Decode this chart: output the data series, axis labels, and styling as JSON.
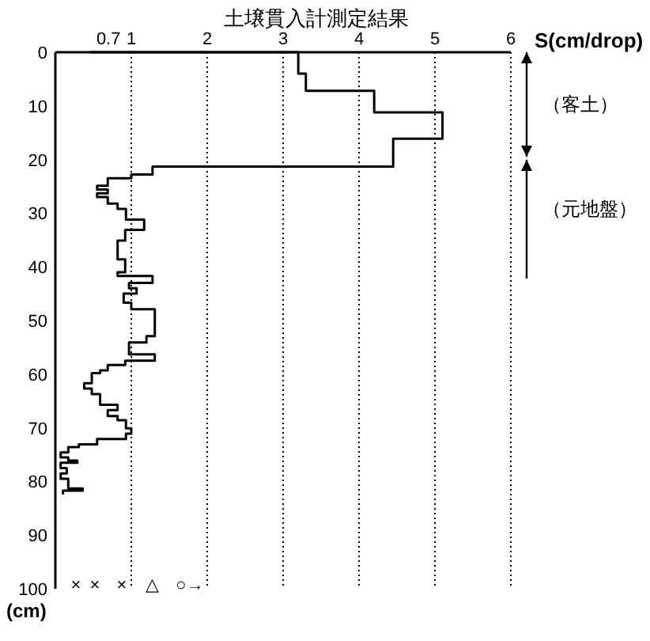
{
  "chart_data": {
    "type": "line",
    "title": "土壌貫入計測定結果",
    "xlabel": "S(cm/drop)",
    "ylabel": "(cm)",
    "xlim": [
      0,
      6
    ],
    "ylim": [
      100,
      0
    ],
    "xticks": [
      {
        "value": 0.7,
        "label": "0.7"
      },
      1,
      2,
      3,
      4,
      5,
      6
    ],
    "yticks": [
      0,
      10,
      20,
      30,
      40,
      50,
      60,
      70,
      80,
      90,
      100
    ],
    "grid": "x",
    "marker": "none",
    "line_style": "solid",
    "series": [
      {
        "color": "#000000",
        "x": [
          0.46,
          3.2,
          3.2,
          3.3,
          3.3,
          4.2,
          4.2,
          5.1,
          5.1,
          4.45,
          4.45,
          1.28,
          1.28,
          1.0,
          1.0,
          0.69,
          0.69,
          0.55,
          0.55,
          0.69,
          0.69,
          0.55,
          0.55,
          0.69,
          0.69,
          0.82,
          0.82,
          0.93,
          0.93,
          1.17,
          1.17,
          0.92,
          0.92,
          0.82,
          0.82,
          0.92,
          0.92,
          0.82,
          0.82,
          1.28,
          1.28,
          0.97,
          0.97,
          1.07,
          1.07,
          0.9,
          0.9,
          1.0,
          1.0,
          1.31,
          1.31,
          1.2,
          1.2,
          0.97,
          0.97,
          1.31,
          1.31,
          0.92,
          0.92,
          0.69,
          0.69,
          0.59,
          0.59,
          0.48,
          0.48,
          0.38,
          0.38,
          0.48,
          0.48,
          0.59,
          0.59,
          0.82,
          0.82,
          0.69,
          0.69,
          0.82,
          0.82,
          0.93,
          0.93,
          1.0,
          1.0,
          0.93,
          0.93,
          0.55,
          0.55,
          0.31,
          0.31,
          0.17,
          0.17,
          0.07,
          0.07,
          0.17,
          0.17,
          0.29,
          0.29,
          0.07,
          0.07,
          0.15,
          0.15,
          0.07,
          0.07,
          0.17,
          0.17,
          0.36,
          0.36,
          0.1,
          0.1
        ],
        "values": [
          0,
          0,
          4,
          4,
          7.2,
          7.2,
          11.2,
          11.2,
          16.1,
          16.1,
          21.3,
          21.3,
          22.8,
          22.8,
          23.5,
          23.5,
          24.9,
          24.9,
          25.6,
          25.6,
          26.3,
          26.3,
          27.0,
          27.0,
          28.2,
          28.2,
          29.2,
          29.2,
          31.2,
          31.2,
          33.1,
          33.1,
          35.1,
          35.1,
          38.6,
          38.6,
          41,
          41,
          41.7,
          41.7,
          43,
          43,
          44,
          44,
          45,
          45,
          46.7,
          46.7,
          47.9,
          47.9,
          52.9,
          52.9,
          54.1,
          54.1,
          56.3,
          56.3,
          57.5,
          57.5,
          58.3,
          58.3,
          59.3,
          59.3,
          59.8,
          59.8,
          61.7,
          61.7,
          62.7,
          62.7,
          63.7,
          63.7,
          65.7,
          65.7,
          66.7,
          66.7,
          67.8,
          67.8,
          68.6,
          68.6,
          70.1,
          70.1,
          71.1,
          71.1,
          72.1,
          72.1,
          73.1,
          73.1,
          73.6,
          73.6,
          74.6,
          74.6,
          75.5,
          75.5,
          76.1,
          76.1,
          76.5,
          76.5,
          77.5,
          77.5,
          78.5,
          78.5,
          79.5,
          79.5,
          81.3,
          81.3,
          81.7,
          81.7,
          82.4
        ]
      }
    ],
    "annotations": [
      "×",
      "×",
      "×",
      "△",
      "○→",
      "（客土）",
      "（元地盤）"
    ]
  }
}
